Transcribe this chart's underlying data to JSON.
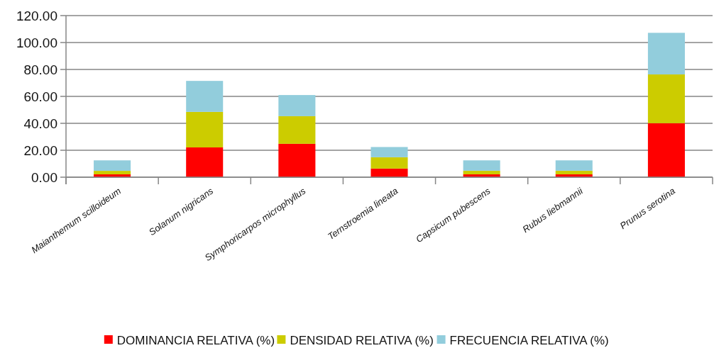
{
  "chart_data": {
    "type": "bar",
    "stacked": true,
    "categories": [
      "Maianthemum scilloideum",
      "Solanum nigricans",
      "Symphoricarpos microphyllus",
      "Ternstroemia lineata",
      "Capsicum pubescens",
      "Rubus liebmannii",
      "Prunus serotina"
    ],
    "series": [
      {
        "name": "DOMINANCIA RELATIVA (%)",
        "color": "#ff0000",
        "values": [
          2.1,
          22.1,
          24.8,
          6.4,
          2.1,
          2.1,
          40.1
        ]
      },
      {
        "name": "DENSIDAD RELATIVA (%)",
        "color": "#cccc00",
        "values": [
          2.6,
          26.4,
          20.5,
          8.4,
          2.7,
          2.7,
          36.2
        ]
      },
      {
        "name": "FRECUENCIA RELATIVA (%)",
        "color": "#92cddc",
        "values": [
          7.8,
          23.0,
          15.7,
          7.6,
          7.7,
          7.7,
          30.9
        ]
      }
    ],
    "ylim": [
      0,
      120
    ],
    "yticks": [
      {
        "value": 0,
        "label": "0.00"
      },
      {
        "value": 20,
        "label": "20.00"
      },
      {
        "value": 40,
        "label": "40.00"
      },
      {
        "value": 60,
        "label": "60.00"
      },
      {
        "value": 80,
        "label": "80.00"
      },
      {
        "value": 100,
        "label": "100.00"
      },
      {
        "value": 120,
        "label": "120.00"
      }
    ],
    "grid": "y",
    "legend": "bottom"
  }
}
